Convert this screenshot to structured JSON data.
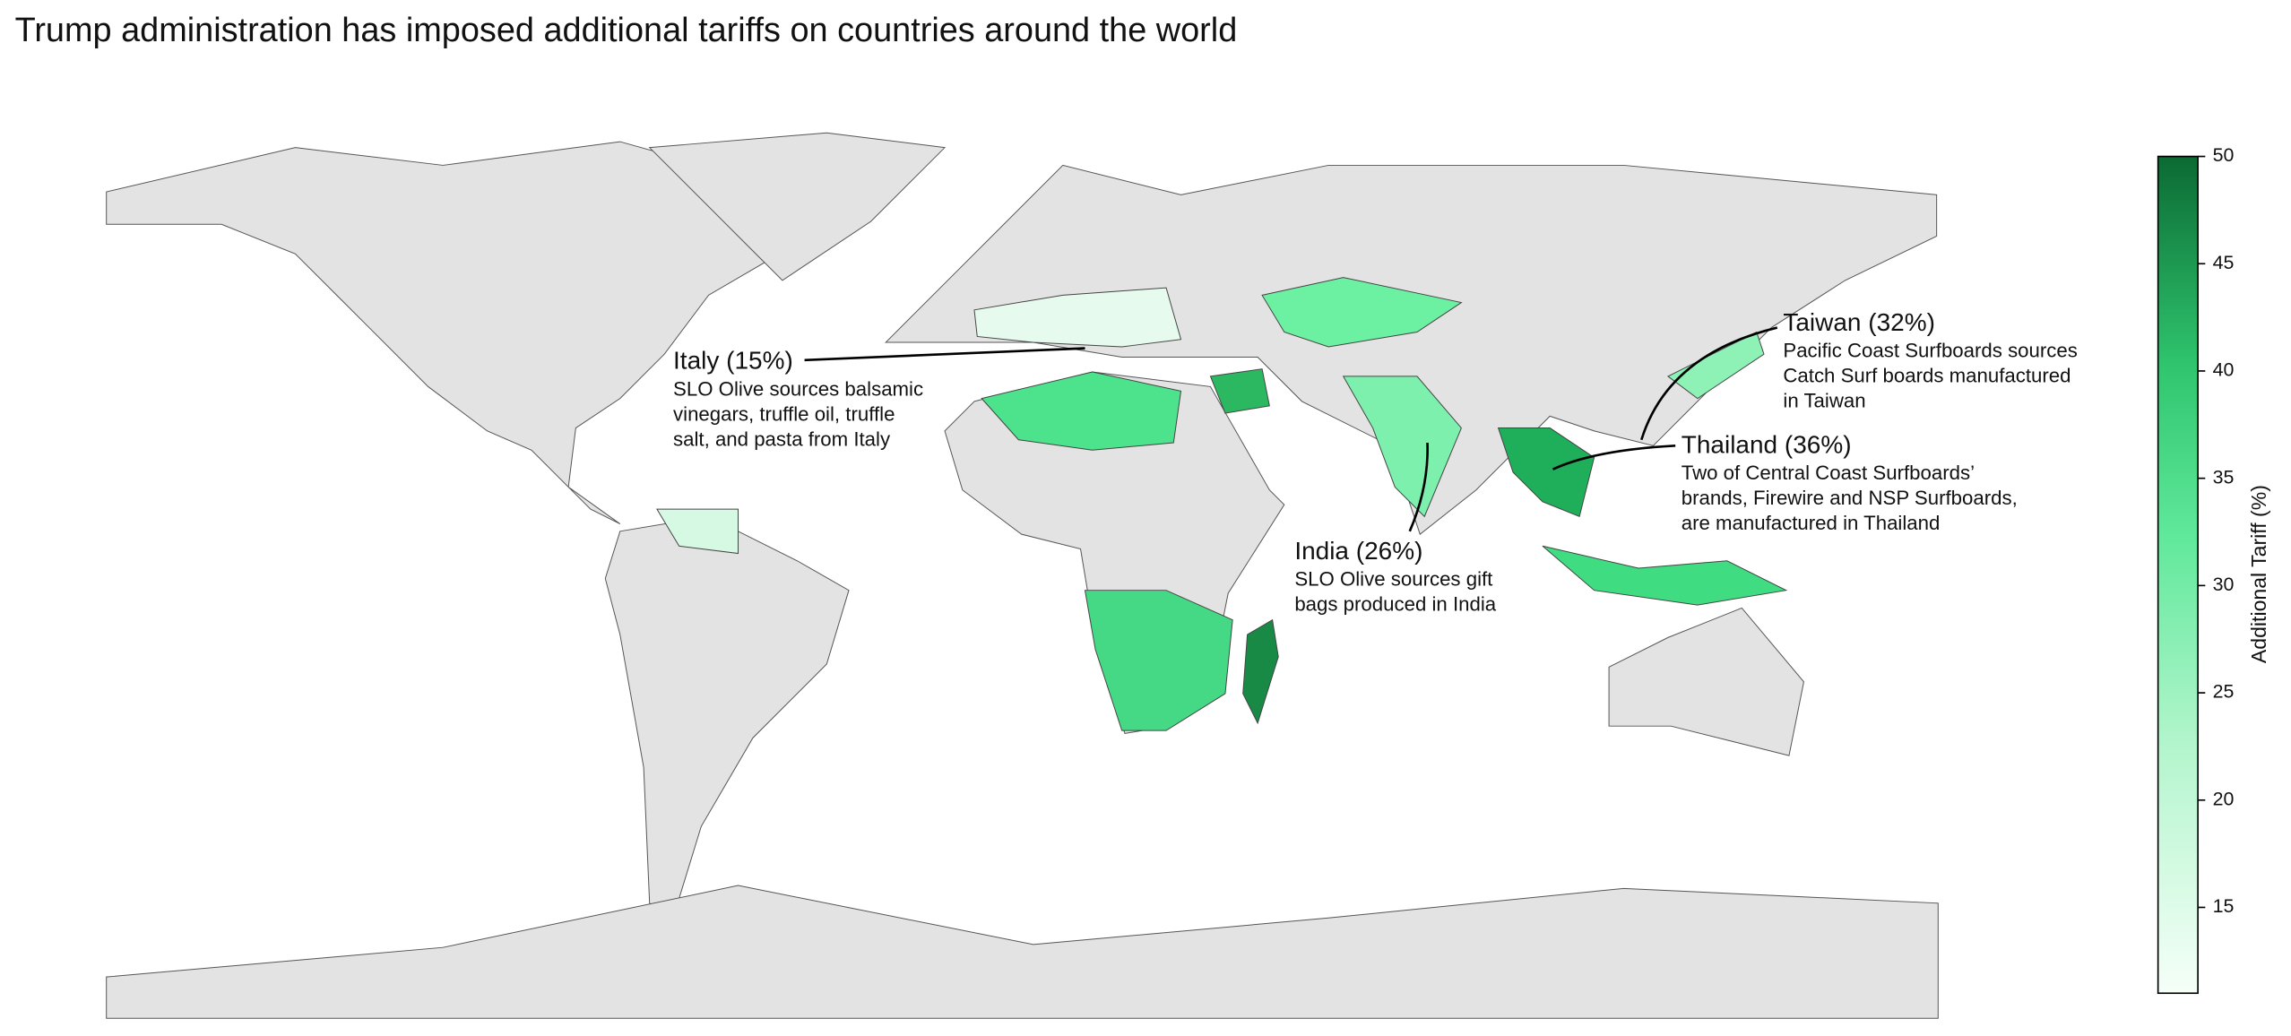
{
  "title": "Trump administration has imposed additional tariffs on countries around the world",
  "annotations": [
    {
      "heading": "Italy (15%)",
      "lines": [
        "SLO Olive sources balsamic",
        "vinegars, truffle oil, truffle",
        "salt, and pasta from Italy"
      ]
    },
    {
      "heading": "India (26%)",
      "lines": [
        "SLO Olive sources gift",
        "bags produced in India"
      ]
    },
    {
      "heading": "Thailand (36%)",
      "lines": [
        "Two of Central Coast Surfboards’",
        "brands, Firewire and NSP Surfboards,",
        "are manufactured in Thailand"
      ]
    },
    {
      "heading": "Taiwan (32%)",
      "lines": [
        "Pacific Coast Surfboards sources",
        "Catch Surf boards manufactured",
        "in Taiwan"
      ]
    }
  ],
  "colorbar": {
    "label": "Additional Tariff (%)",
    "lim": [
      11,
      50
    ],
    "ticks": [
      15,
      20,
      25,
      30,
      35,
      40,
      45,
      50
    ]
  }
}
